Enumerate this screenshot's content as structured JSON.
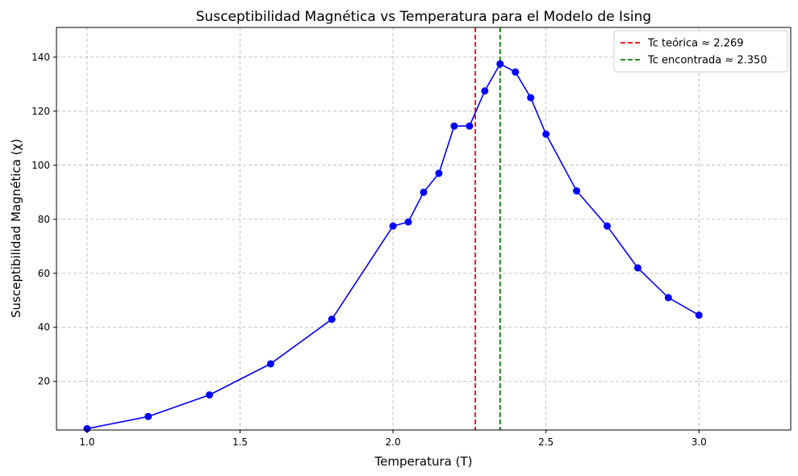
{
  "chart_data": {
    "type": "line",
    "title": "Susceptibilidad Magnética vs Temperatura para el Modelo de Ising",
    "xlabel": "Temperatura (T)",
    "ylabel": "Susceptibilidad Magnética (χ)",
    "xlim": [
      0.9,
      3.3
    ],
    "ylim": [
      2,
      151
    ],
    "xticks": [
      "1.0",
      "1.5",
      "2.0",
      "2.5",
      "3.0"
    ],
    "yticks": [
      "20",
      "40",
      "60",
      "80",
      "100",
      "120",
      "140"
    ],
    "grid": true,
    "legend_position": "top-right",
    "series": [
      {
        "color": "#0000ff",
        "marker": "circle",
        "x": [
          1.0,
          1.2,
          1.4,
          1.6,
          1.8,
          2.0,
          2.05,
          2.1,
          2.15,
          2.2,
          2.25,
          2.3,
          2.35,
          2.4,
          2.45,
          2.5,
          2.6,
          2.7,
          2.8,
          2.9,
          3.0
        ],
        "y": [
          2.5,
          7,
          15,
          26.5,
          43,
          77.5,
          79,
          90,
          97,
          114.5,
          114.5,
          127.5,
          137.5,
          134.5,
          125,
          111.5,
          90.5,
          77.5,
          62,
          51,
          44.5
        ]
      }
    ],
    "vlines": [
      {
        "x": 2.269,
        "color": "#ff0000",
        "label": "Tc teórica ≈ 2.269"
      },
      {
        "x": 2.35,
        "color": "#008000",
        "label": "Tc encontrada ≈ 2.350"
      }
    ]
  }
}
